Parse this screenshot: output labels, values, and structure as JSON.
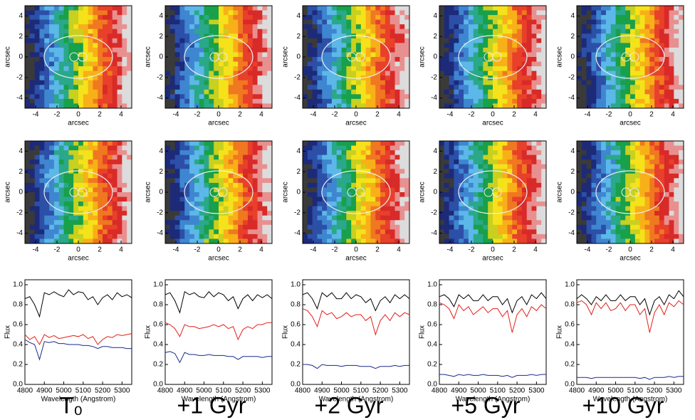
{
  "chart_data": [
    {
      "type": "map",
      "xlabel": "arcsec",
      "ylabel": "arcsec",
      "xlim": [
        -5,
        5
      ],
      "ylim": [
        -5,
        5
      ],
      "xticks": [
        -4,
        -2,
        0,
        2,
        4
      ],
      "yticks": [
        -4,
        -2,
        0,
        2,
        4
      ]
    },
    {
      "type": "map",
      "xlabel": "arcsec",
      "ylabel": "arcsec",
      "xlim": [
        -5,
        5
      ],
      "ylim": [
        -5,
        5
      ],
      "xticks": [
        -4,
        -2,
        0,
        2,
        4
      ],
      "yticks": [
        -4,
        -2,
        0,
        2,
        4
      ]
    },
    {
      "type": "map",
      "xlabel": "arcsec",
      "ylabel": "arcsec",
      "xlim": [
        -5,
        5
      ],
      "ylim": [
        -5,
        5
      ],
      "xticks": [
        -4,
        -2,
        0,
        2,
        4
      ],
      "yticks": [
        -4,
        -2,
        0,
        2,
        4
      ]
    },
    {
      "type": "map",
      "xlabel": "arcsec",
      "ylabel": "arcsec",
      "xlim": [
        -5,
        5
      ],
      "ylim": [
        -5,
        5
      ],
      "xticks": [
        -4,
        -2,
        0,
        2,
        4
      ],
      "yticks": [
        -4,
        -2,
        0,
        2,
        4
      ]
    },
    {
      "type": "map",
      "xlabel": "arcsec",
      "ylabel": "arcsec",
      "xlim": [
        -5,
        5
      ],
      "ylim": [
        -5,
        5
      ],
      "xticks": [
        -4,
        -2,
        0,
        2,
        4
      ],
      "yticks": [
        -4,
        -2,
        0,
        2,
        4
      ]
    },
    {
      "type": "map",
      "xlabel": "arcsec",
      "ylabel": "arcsec",
      "xlim": [
        -5,
        5
      ],
      "ylim": [
        -5,
        5
      ],
      "xticks": [
        -4,
        -2,
        0,
        2,
        4
      ],
      "yticks": [
        -4,
        -2,
        0,
        2,
        4
      ]
    },
    {
      "type": "map",
      "xlabel": "arcsec",
      "ylabel": "arcsec",
      "xlim": [
        -5,
        5
      ],
      "ylim": [
        -5,
        5
      ],
      "xticks": [
        -4,
        -2,
        0,
        2,
        4
      ],
      "yticks": [
        -4,
        -2,
        0,
        2,
        4
      ]
    },
    {
      "type": "map",
      "xlabel": "arcsec",
      "ylabel": "arcsec",
      "xlim": [
        -5,
        5
      ],
      "ylim": [
        -5,
        5
      ],
      "xticks": [
        -4,
        -2,
        0,
        2,
        4
      ],
      "yticks": [
        -4,
        -2,
        0,
        2,
        4
      ]
    },
    {
      "type": "map",
      "xlabel": "arcsec",
      "ylabel": "arcsec",
      "xlim": [
        -5,
        5
      ],
      "ylim": [
        -5,
        5
      ],
      "xticks": [
        -4,
        -2,
        0,
        2,
        4
      ],
      "yticks": [
        -4,
        -2,
        0,
        2,
        4
      ]
    },
    {
      "type": "map",
      "xlabel": "arcsec",
      "ylabel": "arcsec",
      "xlim": [
        -5,
        5
      ],
      "ylim": [
        -5,
        5
      ],
      "xticks": [
        -4,
        -2,
        0,
        2,
        4
      ],
      "yticks": [
        -4,
        -2,
        0,
        2,
        4
      ]
    },
    {
      "type": "line",
      "xlabel": "Wavelength (Angstrom)",
      "ylabel": "Flux",
      "xlim": [
        4800,
        5350
      ],
      "ylim": [
        0,
        1.05
      ],
      "xticks": [
        4800,
        4900,
        5000,
        5100,
        5200,
        5300
      ],
      "yticks": [
        {
          "value": 0,
          "label": "0.0"
        },
        {
          "value": 0.2,
          "label": "0.2"
        },
        {
          "value": 0.4,
          "label": "0.4"
        },
        {
          "value": 0.6,
          "label": "0.6"
        },
        {
          "value": 0.8,
          "label": "0.8"
        },
        {
          "value": 1,
          "label": "1.0"
        }
      ],
      "x": [
        4800,
        4825,
        4850,
        4875,
        4900,
        4925,
        4950,
        4975,
        5000,
        5025,
        5050,
        5075,
        5100,
        5125,
        5150,
        5175,
        5200,
        5225,
        5250,
        5275,
        5300,
        5325,
        5350
      ],
      "series": [
        {
          "color": "#000000",
          "values": [
            0.86,
            0.88,
            0.8,
            0.68,
            0.92,
            0.9,
            0.93,
            0.9,
            0.88,
            0.95,
            0.9,
            0.93,
            0.92,
            0.85,
            0.88,
            0.8,
            0.87,
            0.9,
            0.85,
            0.92,
            0.88,
            0.9,
            0.87
          ]
        },
        {
          "color": "#e0201a",
          "values": [
            0.5,
            0.45,
            0.48,
            0.4,
            0.5,
            0.47,
            0.49,
            0.46,
            0.47,
            0.48,
            0.49,
            0.48,
            0.5,
            0.46,
            0.48,
            0.4,
            0.45,
            0.48,
            0.47,
            0.5,
            0.49,
            0.5,
            0.51
          ]
        },
        {
          "color": "#1a2a8a",
          "values": [
            0.45,
            0.42,
            0.4,
            0.25,
            0.43,
            0.42,
            0.43,
            0.41,
            0.41,
            0.4,
            0.4,
            0.4,
            0.39,
            0.39,
            0.38,
            0.36,
            0.38,
            0.38,
            0.37,
            0.37,
            0.37,
            0.36,
            0.36
          ]
        }
      ]
    },
    {
      "type": "line",
      "xlabel": "Wavelength (Angstrom)",
      "ylabel": "Flux",
      "xlim": [
        4800,
        5350
      ],
      "ylim": [
        0,
        1.05
      ],
      "xticks": [
        4800,
        4900,
        5000,
        5100,
        5200,
        5300
      ],
      "yticks": [
        {
          "value": 0,
          "label": "0.0"
        },
        {
          "value": 0.2,
          "label": "0.2"
        },
        {
          "value": 0.4,
          "label": "0.4"
        },
        {
          "value": 0.6,
          "label": "0.6"
        },
        {
          "value": 0.8,
          "label": "0.8"
        },
        {
          "value": 1,
          "label": "1.0"
        }
      ],
      "x": [
        4800,
        4825,
        4850,
        4875,
        4900,
        4925,
        4950,
        4975,
        5000,
        5025,
        5050,
        5075,
        5100,
        5125,
        5150,
        5175,
        5200,
        5225,
        5250,
        5275,
        5300,
        5325,
        5350
      ],
      "series": [
        {
          "color": "#000000",
          "values": [
            0.9,
            0.92,
            0.84,
            0.72,
            0.93,
            0.9,
            0.92,
            0.88,
            0.87,
            0.93,
            0.88,
            0.92,
            0.9,
            0.84,
            0.88,
            0.76,
            0.86,
            0.9,
            0.84,
            0.9,
            0.87,
            0.9,
            0.86
          ]
        },
        {
          "color": "#e0201a",
          "values": [
            0.62,
            0.6,
            0.56,
            0.48,
            0.6,
            0.58,
            0.58,
            0.56,
            0.57,
            0.58,
            0.6,
            0.58,
            0.6,
            0.56,
            0.58,
            0.45,
            0.55,
            0.58,
            0.56,
            0.6,
            0.6,
            0.62,
            0.62
          ]
        },
        {
          "color": "#1a2a8a",
          "values": [
            0.32,
            0.33,
            0.31,
            0.22,
            0.32,
            0.3,
            0.3,
            0.29,
            0.29,
            0.3,
            0.29,
            0.29,
            0.29,
            0.28,
            0.28,
            0.25,
            0.28,
            0.28,
            0.28,
            0.28,
            0.27,
            0.28,
            0.28
          ]
        }
      ]
    },
    {
      "type": "line",
      "xlabel": "Wavelength (Angstrom)",
      "ylabel": "Flux",
      "xlim": [
        4800,
        5350
      ],
      "ylim": [
        0,
        1.05
      ],
      "xticks": [
        4800,
        4900,
        5000,
        5100,
        5200,
        5300
      ],
      "yticks": [
        {
          "value": 0,
          "label": "0.0"
        },
        {
          "value": 0.2,
          "label": "0.2"
        },
        {
          "value": 0.4,
          "label": "0.4"
        },
        {
          "value": 0.6,
          "label": "0.6"
        },
        {
          "value": 0.8,
          "label": "0.8"
        },
        {
          "value": 1,
          "label": "1.0"
        }
      ],
      "x": [
        4800,
        4825,
        4850,
        4875,
        4900,
        4925,
        4950,
        4975,
        5000,
        5025,
        5050,
        5075,
        5100,
        5125,
        5150,
        5175,
        5200,
        5225,
        5250,
        5275,
        5300,
        5325,
        5350
      ],
      "series": [
        {
          "color": "#000000",
          "values": [
            0.9,
            0.92,
            0.86,
            0.76,
            0.92,
            0.88,
            0.92,
            0.86,
            0.86,
            0.92,
            0.86,
            0.9,
            0.88,
            0.82,
            0.86,
            0.74,
            0.84,
            0.88,
            0.82,
            0.9,
            0.86,
            0.9,
            0.86
          ]
        },
        {
          "color": "#e0201a",
          "values": [
            0.76,
            0.74,
            0.68,
            0.58,
            0.74,
            0.7,
            0.72,
            0.66,
            0.68,
            0.72,
            0.68,
            0.7,
            0.7,
            0.64,
            0.68,
            0.5,
            0.64,
            0.7,
            0.64,
            0.72,
            0.68,
            0.72,
            0.7
          ]
        },
        {
          "color": "#1a2a8a",
          "values": [
            0.2,
            0.2,
            0.19,
            0.16,
            0.2,
            0.19,
            0.19,
            0.19,
            0.18,
            0.19,
            0.19,
            0.19,
            0.18,
            0.18,
            0.18,
            0.16,
            0.18,
            0.18,
            0.18,
            0.19,
            0.18,
            0.19,
            0.19
          ]
        }
      ]
    },
    {
      "type": "line",
      "xlabel": "Wavelength (Angstrom)",
      "ylabel": "Flux",
      "xlim": [
        4800,
        5350
      ],
      "ylim": [
        0,
        1.05
      ],
      "xticks": [
        4800,
        4900,
        5000,
        5100,
        5200,
        5300
      ],
      "yticks": [
        {
          "value": 0,
          "label": "0.0"
        },
        {
          "value": 0.2,
          "label": "0.2"
        },
        {
          "value": 0.4,
          "label": "0.4"
        },
        {
          "value": 0.6,
          "label": "0.6"
        },
        {
          "value": 0.8,
          "label": "0.8"
        },
        {
          "value": 1,
          "label": "1.0"
        }
      ],
      "x": [
        4800,
        4825,
        4850,
        4875,
        4900,
        4925,
        4950,
        4975,
        5000,
        5025,
        5050,
        5075,
        5100,
        5125,
        5150,
        5175,
        5200,
        5225,
        5250,
        5275,
        5300,
        5325,
        5350
      ],
      "series": [
        {
          "color": "#000000",
          "values": [
            0.88,
            0.9,
            0.86,
            0.78,
            0.9,
            0.86,
            0.9,
            0.84,
            0.84,
            0.9,
            0.84,
            0.88,
            0.88,
            0.8,
            0.86,
            0.72,
            0.84,
            0.88,
            0.8,
            0.9,
            0.86,
            0.92,
            0.86
          ]
        },
        {
          "color": "#e0201a",
          "values": [
            0.82,
            0.8,
            0.76,
            0.66,
            0.8,
            0.74,
            0.78,
            0.7,
            0.74,
            0.78,
            0.72,
            0.76,
            0.76,
            0.68,
            0.74,
            0.52,
            0.7,
            0.76,
            0.68,
            0.78,
            0.74,
            0.8,
            0.76
          ]
        },
        {
          "color": "#1a2a8a",
          "values": [
            0.1,
            0.1,
            0.09,
            0.08,
            0.1,
            0.09,
            0.1,
            0.09,
            0.09,
            0.1,
            0.09,
            0.09,
            0.09,
            0.08,
            0.09,
            0.07,
            0.09,
            0.09,
            0.09,
            0.1,
            0.09,
            0.1,
            0.1
          ]
        }
      ]
    },
    {
      "type": "line",
      "xlabel": "Wavelength (Angstrom)",
      "ylabel": "Flux",
      "xlim": [
        4800,
        5350
      ],
      "ylim": [
        0,
        1.05
      ],
      "xticks": [
        4800,
        4900,
        5000,
        5100,
        5200,
        5300
      ],
      "yticks": [
        {
          "value": 0,
          "label": "0.0"
        },
        {
          "value": 0.2,
          "label": "0.2"
        },
        {
          "value": 0.4,
          "label": "0.4"
        },
        {
          "value": 0.6,
          "label": "0.6"
        },
        {
          "value": 0.8,
          "label": "0.8"
        },
        {
          "value": 1,
          "label": "1.0"
        }
      ],
      "x": [
        4800,
        4825,
        4850,
        4875,
        4900,
        4925,
        4950,
        4975,
        5000,
        5025,
        5050,
        5075,
        5100,
        5125,
        5150,
        5175,
        5200,
        5225,
        5250,
        5275,
        5300,
        5325,
        5350
      ],
      "series": [
        {
          "color": "#000000",
          "values": [
            0.86,
            0.9,
            0.86,
            0.8,
            0.88,
            0.84,
            0.9,
            0.84,
            0.84,
            0.9,
            0.84,
            0.88,
            0.88,
            0.8,
            0.86,
            0.7,
            0.84,
            0.88,
            0.8,
            0.9,
            0.86,
            0.94,
            0.88
          ]
        },
        {
          "color": "#e0201a",
          "values": [
            0.82,
            0.84,
            0.8,
            0.7,
            0.82,
            0.76,
            0.82,
            0.74,
            0.76,
            0.82,
            0.74,
            0.8,
            0.8,
            0.7,
            0.76,
            0.52,
            0.72,
            0.8,
            0.7,
            0.82,
            0.78,
            0.84,
            0.8
          ]
        },
        {
          "color": "#1a2a8a",
          "values": [
            0.07,
            0.07,
            0.07,
            0.06,
            0.07,
            0.07,
            0.07,
            0.07,
            0.07,
            0.07,
            0.07,
            0.07,
            0.07,
            0.06,
            0.07,
            0.05,
            0.07,
            0.07,
            0.07,
            0.08,
            0.07,
            0.08,
            0.08
          ]
        }
      ]
    }
  ],
  "column_labels": [
    "T₀",
    "+1 Gyr",
    "+2 Gyr",
    "+5 Gyr",
    "+10 Gyr"
  ]
}
